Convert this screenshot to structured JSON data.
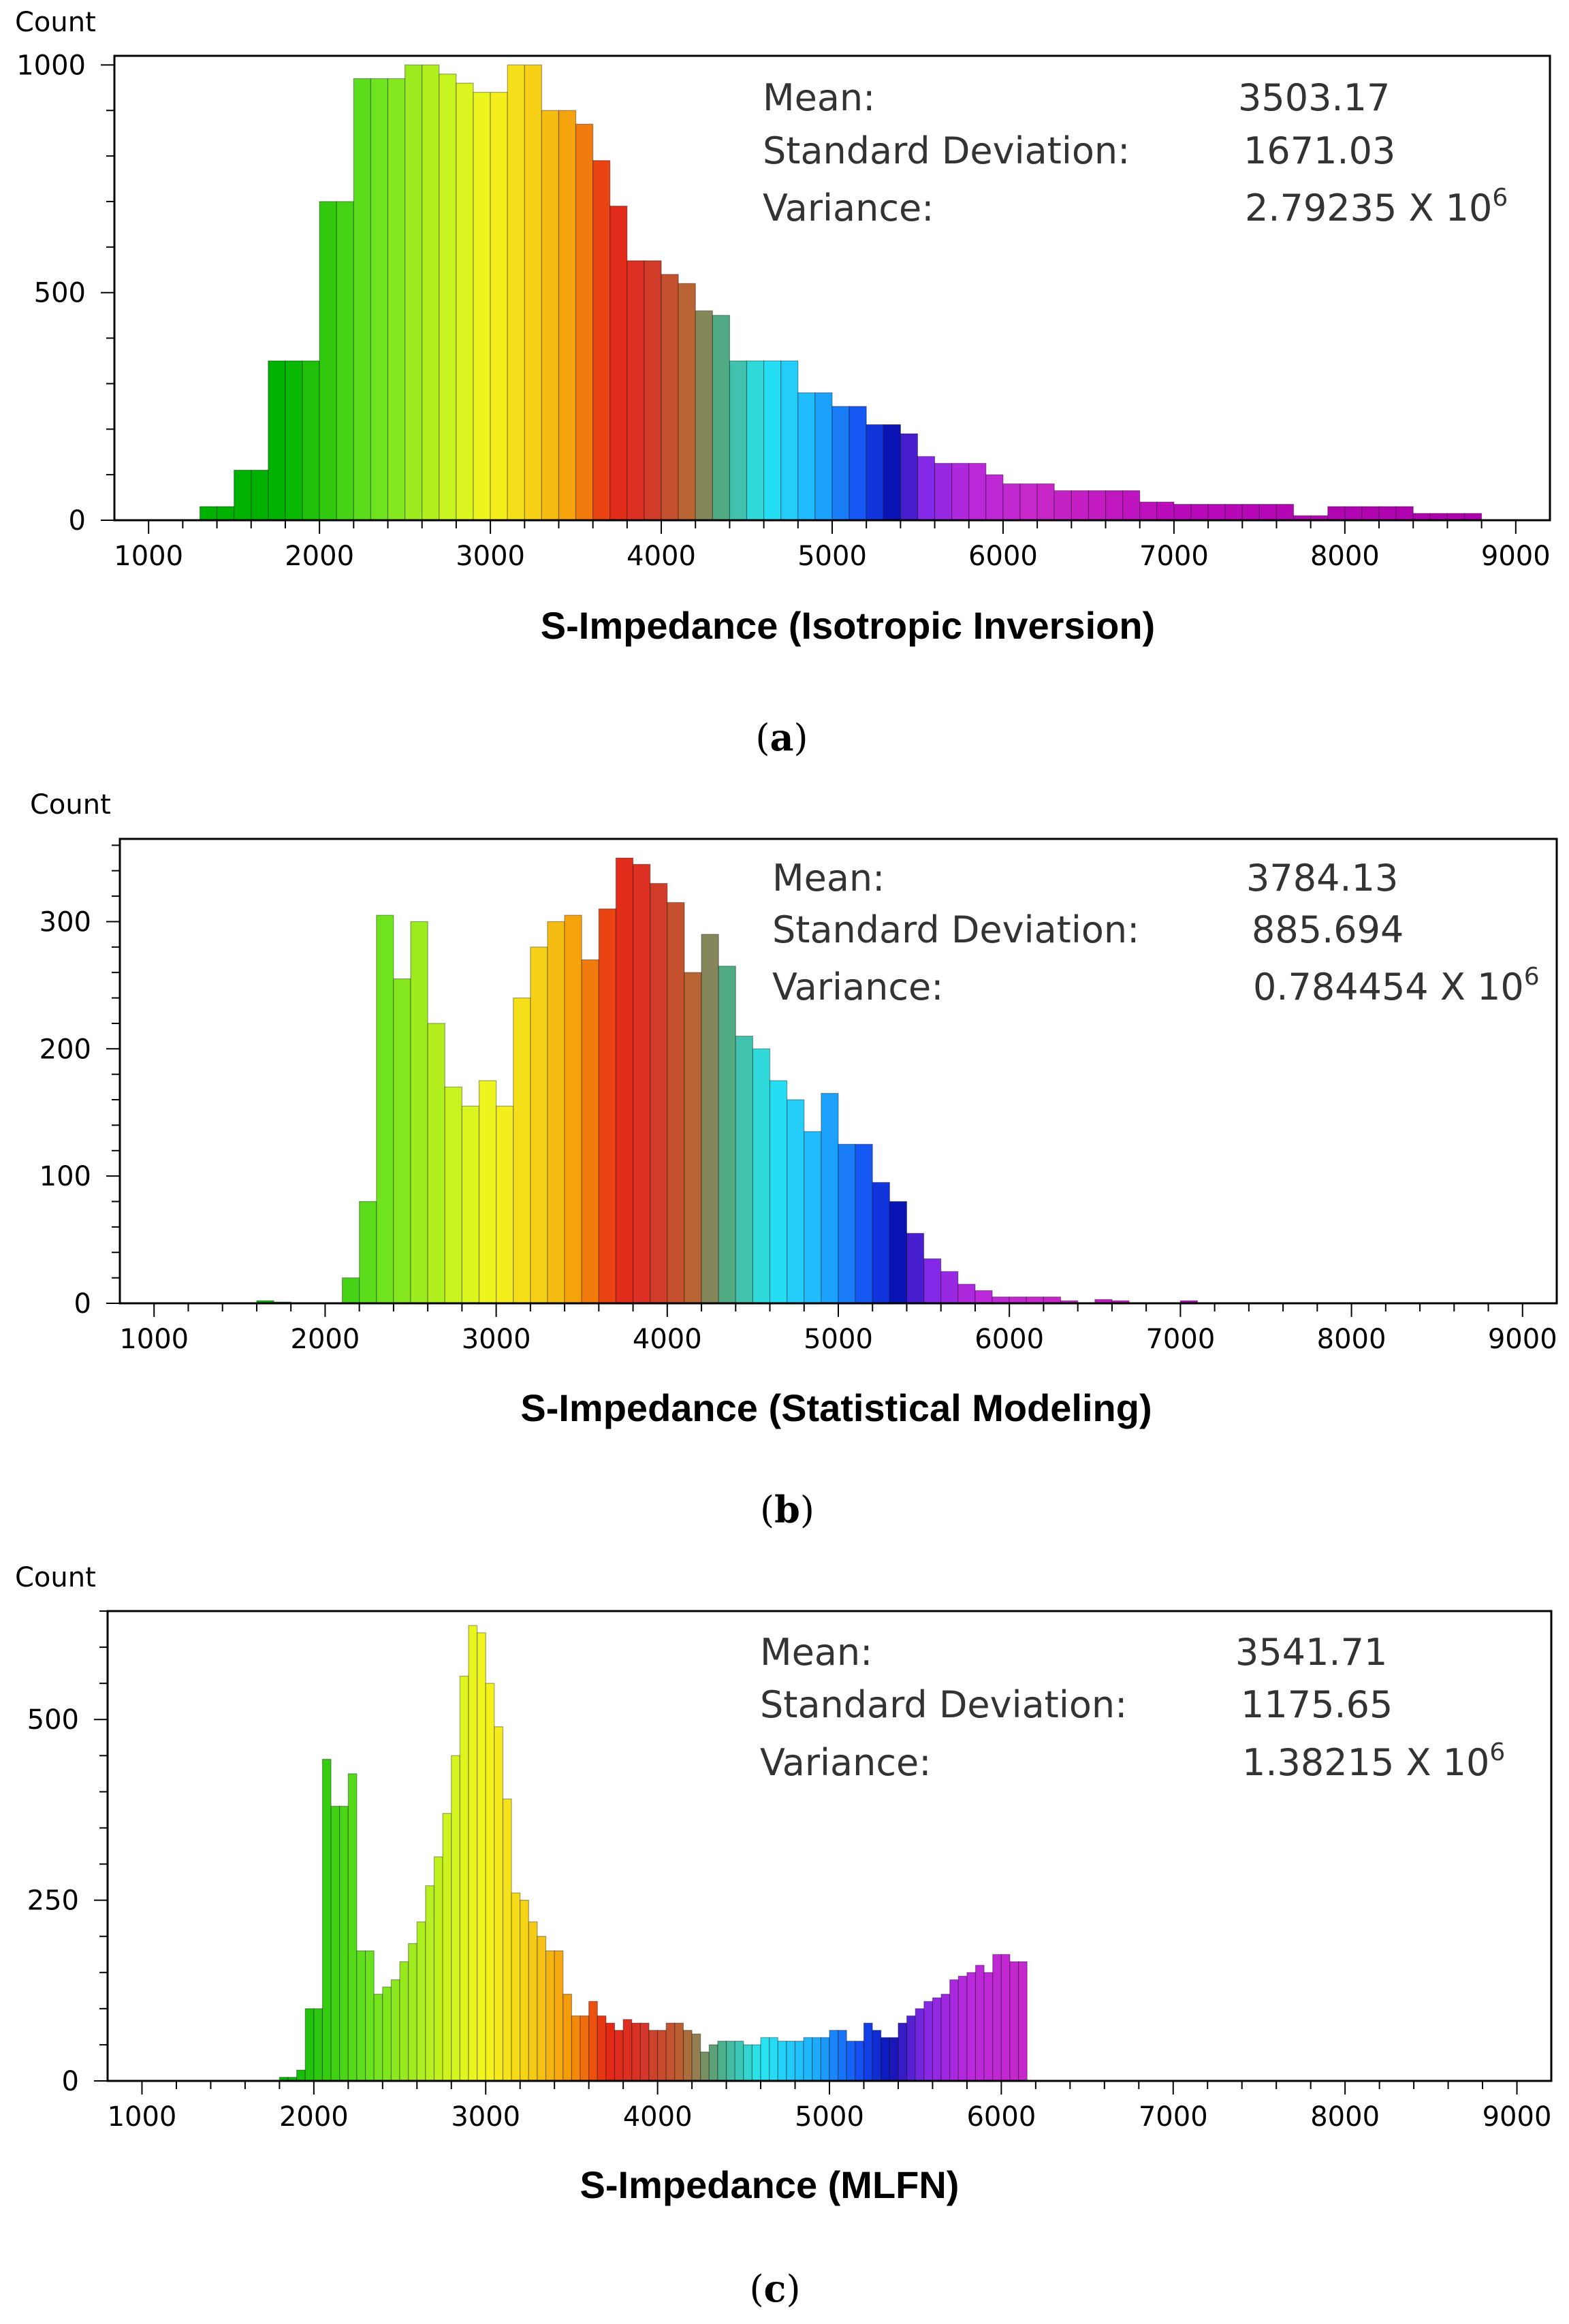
{
  "chart_data": [
    {
      "type": "bar",
      "panel_label": "a",
      "ylabel": "Count",
      "xlabel": "S-Impedance (Isotropic Inversion)",
      "xlim": [
        800,
        9200
      ],
      "ylim": [
        0,
        1020
      ],
      "bin_width": 100,
      "x_ticks": [
        1000,
        2000,
        3000,
        4000,
        5000,
        6000,
        7000,
        8000,
        9000
      ],
      "y_ticks": [
        0,
        500,
        1000
      ],
      "bin_starts": [
        1300,
        1400,
        1500,
        1600,
        1700,
        1800,
        1900,
        2000,
        2100,
        2200,
        2300,
        2400,
        2500,
        2600,
        2700,
        2800,
        2900,
        3000,
        3100,
        3200,
        3300,
        3400,
        3500,
        3600,
        3700,
        3800,
        3900,
        4000,
        4100,
        4200,
        4300,
        4400,
        4500,
        4600,
        4700,
        4800,
        4900,
        5000,
        5100,
        5200,
        5300,
        5400,
        5500,
        5600,
        5700,
        5800,
        5900,
        6000,
        6100,
        6200,
        6300,
        6400,
        6500,
        6600,
        6700,
        6800,
        6900,
        7000,
        7100,
        7200,
        7300,
        7400,
        7500,
        7600,
        7700,
        7800,
        7900,
        8000,
        8100,
        8200,
        8300,
        8400,
        8500,
        8600,
        8700,
        8800
      ],
      "values": [
        30,
        30,
        110,
        110,
        350,
        350,
        350,
        700,
        700,
        970,
        970,
        970,
        1000,
        1000,
        980,
        960,
        940,
        940,
        1000,
        1000,
        900,
        900,
        870,
        790,
        690,
        570,
        570,
        540,
        520,
        460,
        450,
        350,
        350,
        350,
        350,
        280,
        280,
        250,
        250,
        210,
        210,
        190,
        140,
        125,
        125,
        125,
        100,
        80,
        80,
        80,
        65,
        65,
        65,
        65,
        65,
        40,
        40,
        35,
        35,
        35,
        35,
        35,
        35,
        35,
        10,
        10,
        30,
        30,
        30,
        30,
        30,
        15,
        15,
        15,
        15,
        0
      ],
      "stats": {
        "mean_label": "Mean:",
        "mean_value": "3503.17",
        "sd_label": "Standard Deviation:",
        "sd_value": "1671.03",
        "var_label": "Variance:",
        "var_value": "2.79235 X 10",
        "var_exp": "6"
      },
      "caption_letter": "a"
    },
    {
      "type": "bar",
      "panel_label": "b",
      "ylabel": "Count",
      "xlabel": "S-Impedance (Statistical Modeling)",
      "xlim": [
        800,
        9200
      ],
      "ylim": [
        0,
        365
      ],
      "bin_width": 100,
      "x_ticks": [
        1000,
        2000,
        3000,
        4000,
        5000,
        6000,
        7000,
        8000,
        9000
      ],
      "y_ticks": [
        0,
        100,
        200,
        300
      ],
      "bin_starts": [
        1600,
        1700,
        2100,
        2200,
        2300,
        2400,
        2500,
        2600,
        2700,
        2800,
        2900,
        3000,
        3100,
        3200,
        3300,
        3400,
        3500,
        3600,
        3700,
        3800,
        3900,
        4000,
        4100,
        4200,
        4300,
        4400,
        4500,
        4600,
        4700,
        4800,
        4900,
        5000,
        5100,
        5200,
        5300,
        5400,
        5500,
        5600,
        5700,
        5800,
        5900,
        6000,
        6100,
        6200,
        6300,
        6500,
        6600,
        7000
      ],
      "values": [
        2,
        1,
        20,
        80,
        305,
        255,
        300,
        220,
        170,
        155,
        175,
        155,
        240,
        280,
        300,
        305,
        270,
        310,
        350,
        345,
        330,
        315,
        260,
        290,
        265,
        210,
        200,
        175,
        160,
        135,
        165,
        125,
        125,
        95,
        80,
        55,
        35,
        25,
        15,
        10,
        5,
        5,
        5,
        5,
        2,
        3,
        2,
        2
      ],
      "stats": {
        "mean_label": "Mean:",
        "mean_value": "3784.13",
        "sd_label": "Standard Deviation:",
        "sd_value": "885.694",
        "var_label": "Variance:",
        "var_value": "0.784454 X 10",
        "var_exp": "6"
      },
      "caption_letter": "b"
    },
    {
      "type": "bar",
      "panel_label": "c",
      "ylabel": "Count",
      "xlabel": "S-Impedance (MLFN)",
      "xlim": [
        800,
        9200
      ],
      "ylim": [
        0,
        650
      ],
      "bin_width": 50,
      "x_ticks": [
        1000,
        2000,
        3000,
        4000,
        5000,
        6000,
        7000,
        8000,
        9000
      ],
      "y_ticks": [
        0,
        250,
        500
      ],
      "bin_starts": [
        1800,
        1850,
        1900,
        1950,
        2000,
        2050,
        2100,
        2150,
        2200,
        2250,
        2300,
        2350,
        2400,
        2450,
        2500,
        2550,
        2600,
        2650,
        2700,
        2750,
        2800,
        2850,
        2900,
        2950,
        3000,
        3050,
        3100,
        3150,
        3200,
        3250,
        3300,
        3350,
        3400,
        3450,
        3500,
        3550,
        3600,
        3650,
        3700,
        3750,
        3800,
        3850,
        3900,
        3950,
        4000,
        4050,
        4100,
        4150,
        4200,
        4250,
        4300,
        4350,
        4400,
        4450,
        4500,
        4550,
        4600,
        4650,
        4700,
        4750,
        4800,
        4850,
        4900,
        4950,
        5000,
        5050,
        5100,
        5150,
        5200,
        5250,
        5300,
        5350,
        5400,
        5450,
        5500,
        5550,
        5600,
        5650,
        5700,
        5750,
        5800,
        5850,
        5900,
        5950,
        6000,
        6050,
        6100,
        6150
      ],
      "values": [
        5,
        5,
        15,
        100,
        100,
        445,
        380,
        380,
        425,
        180,
        180,
        120,
        130,
        140,
        165,
        190,
        220,
        270,
        310,
        370,
        450,
        560,
        630,
        620,
        550,
        490,
        390,
        260,
        250,
        220,
        200,
        180,
        180,
        120,
        90,
        90,
        110,
        90,
        80,
        70,
        85,
        80,
        80,
        70,
        70,
        80,
        80,
        70,
        65,
        40,
        50,
        55,
        55,
        55,
        50,
        50,
        60,
        60,
        55,
        55,
        55,
        60,
        60,
        60,
        70,
        70,
        55,
        55,
        80,
        70,
        60,
        60,
        80,
        90,
        100,
        110,
        115,
        120,
        140,
        145,
        150,
        160,
        150,
        175,
        175,
        165,
        165,
        0
      ],
      "stats": {
        "mean_label": "Mean:",
        "mean_value": "3541.71",
        "sd_label": "Standard Deviation:",
        "sd_value": "1175.65",
        "var_label": "Variance:",
        "var_value": "1.38215 X 10",
        "var_exp": "6"
      },
      "caption_letter": "c"
    }
  ]
}
